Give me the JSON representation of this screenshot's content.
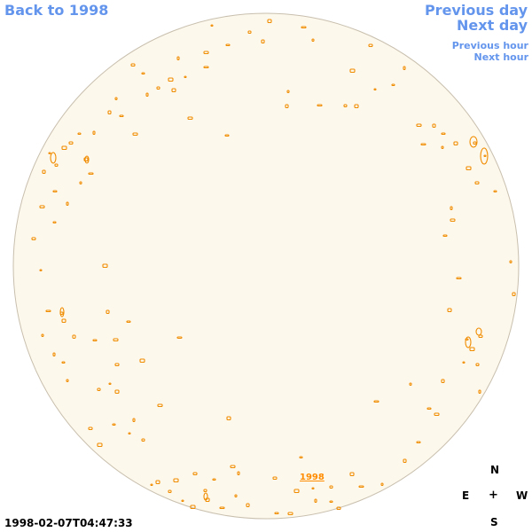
{
  "nav": {
    "back_label": "Back to 1998",
    "previous_day_label": "Previous day",
    "next_day_label": "Next day",
    "previous_hour_label": "Previous hour",
    "next_hour_label": "Next hour"
  },
  "disk": {
    "year_link_label": "1998",
    "fill_color": "#fdf8ec",
    "edge_color": "#c8bfae",
    "contour_color": "#f08c00"
  },
  "compass": {
    "north": "N",
    "east": "E",
    "center": "+",
    "west": "W",
    "south": "S"
  },
  "timestamp": "1998-02-07T04:47:33"
}
